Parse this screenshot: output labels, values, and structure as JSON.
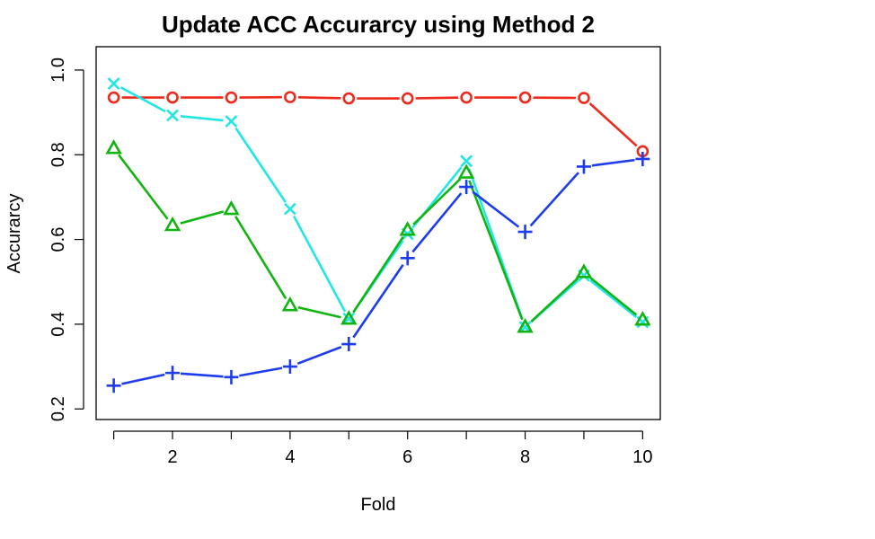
{
  "chart_data": {
    "type": "line",
    "title": "Update ACC Accurarcy using Method 2",
    "xlabel": "Fold",
    "ylabel": "Accurarcy",
    "xlim": [
      0.7,
      10.3
    ],
    "ylim": [
      0.175,
      1.055
    ],
    "x": [
      1,
      2,
      3,
      4,
      5,
      6,
      7,
      8,
      9,
      10
    ],
    "xticks": [
      2,
      4,
      6,
      8,
      10
    ],
    "yticks": [
      0.2,
      0.4,
      0.6,
      0.8,
      1.0
    ],
    "ytick_labels": [
      "0.2",
      "0.4",
      "0.6",
      "0.8",
      "1.0"
    ],
    "grid": false,
    "series": [
      {
        "name": "red-circles",
        "color": "#ee2a1c",
        "marker": "circle",
        "values": [
          0.935,
          0.935,
          0.935,
          0.936,
          0.933,
          0.933,
          0.935,
          0.935,
          0.934,
          0.808
        ]
      },
      {
        "name": "cyan-crosses",
        "color": "#22e6e6",
        "marker": "x",
        "values": [
          0.968,
          0.893,
          0.879,
          0.672,
          0.413,
          0.613,
          0.785,
          0.393,
          0.515,
          0.405
        ]
      },
      {
        "name": "green-triangles",
        "color": "#11b411",
        "marker": "triangle",
        "values": [
          0.815,
          0.633,
          0.671,
          0.444,
          0.412,
          0.622,
          0.757,
          0.393,
          0.522,
          0.41
        ]
      },
      {
        "name": "blue-pluses",
        "color": "#1c3cee",
        "marker": "plus",
        "values": [
          0.255,
          0.285,
          0.275,
          0.3,
          0.353,
          0.556,
          0.724,
          0.618,
          0.772,
          0.79
        ]
      }
    ]
  }
}
